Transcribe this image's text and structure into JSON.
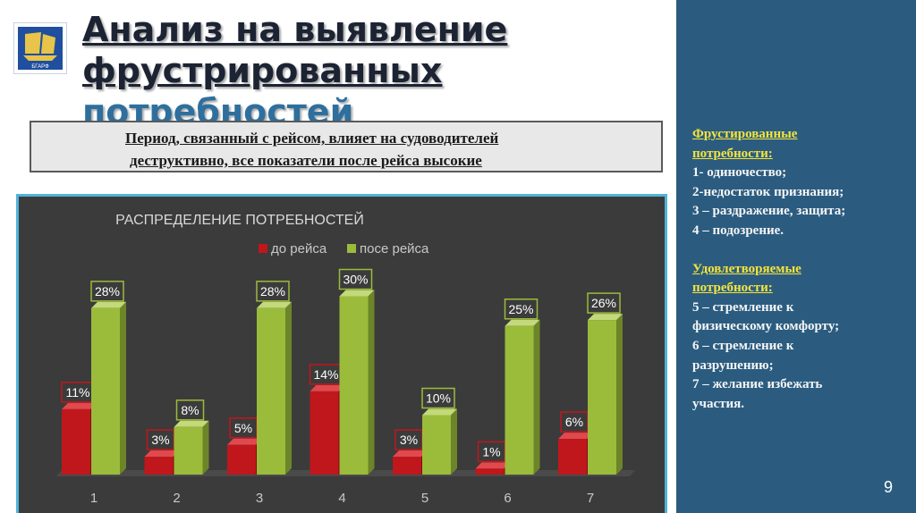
{
  "slide": {
    "title_line1": "Анализ на выявление",
    "title_line2_a": "фрустрированных ",
    "title_line2_b": "потребностей",
    "quote_line1": "Период, связанный с рейсом,  влияет на судоводителей",
    "quote_line2": "деструктивно, все показатели после рейса высокие",
    "logo_text": "БГАРФ",
    "page_number": "9"
  },
  "panel": {
    "frustrated_head1": "Фрустированные",
    "frustrated_head2": "потребности:",
    "f1": "1- одиночество;",
    "f2": "2-недостаток признания;",
    "f3": "3  –  раздражение,  защита;",
    "f4": "4 – подозрение.",
    "satisfied_head1": "Удовлетворяемые",
    "satisfied_head2": "потребности:",
    "s1": "5 – стремление к",
    "s2": "физическому комфорту;",
    "s3": " 6 – стремление к",
    "s4": "разрушению;",
    "s5": "7 – желание избежать",
    "s6": "участия."
  },
  "colors": {
    "before": "#c0171c",
    "after": "#9bbb3b",
    "chart_bg": "#3b3b3b",
    "panel_bg": "#2b5c80",
    "accent": "#f5e43a"
  },
  "chart_data": {
    "type": "bar",
    "title": "РАСПРЕДЕЛЕНИЕ ПОТРЕБНОСТЕЙ",
    "categories": [
      "1",
      "2",
      "3",
      "4",
      "5",
      "6",
      "7"
    ],
    "series": [
      {
        "name": "до рейса",
        "values": [
          11,
          3,
          5,
          14,
          3,
          1,
          6
        ],
        "labels": [
          "11%",
          "3%",
          "5%",
          "14%",
          "3%",
          "1%",
          "6%"
        ]
      },
      {
        "name": "посе рейса",
        "values": [
          28,
          8,
          28,
          30,
          10,
          25,
          26
        ],
        "labels": [
          "28%",
          "8%",
          "28%",
          "30%",
          "10%",
          "25%",
          "26%"
        ]
      }
    ],
    "ylim": [
      0,
      30
    ],
    "grid": false,
    "legend_position": "top",
    "bar_style": "3d"
  }
}
